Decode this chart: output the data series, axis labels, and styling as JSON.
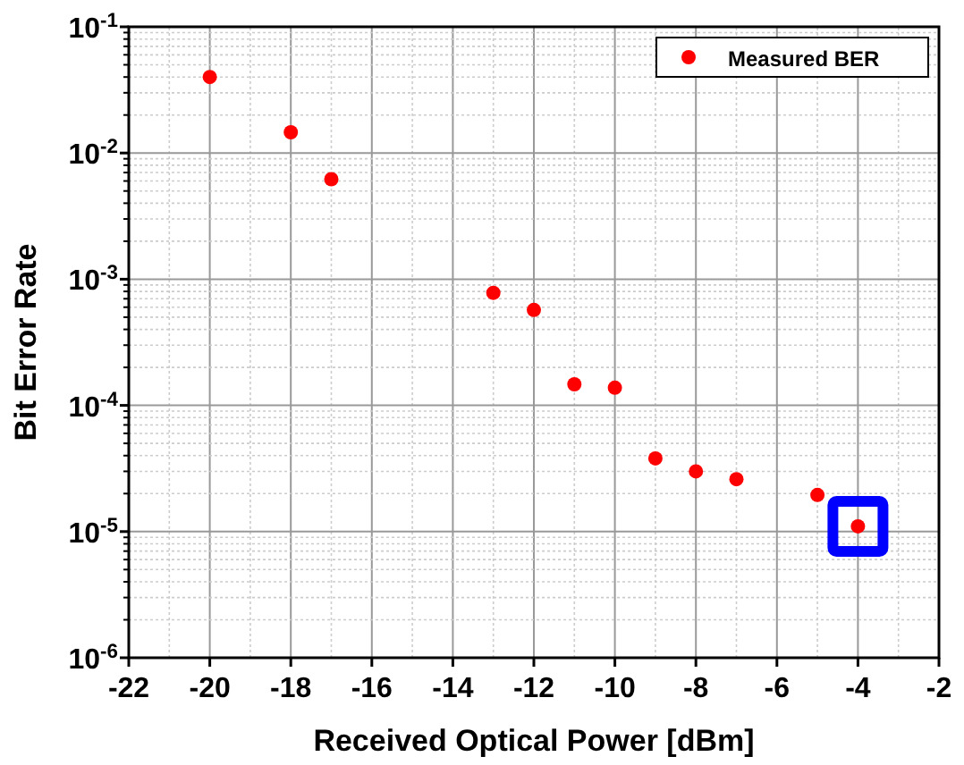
{
  "chart_data": {
    "type": "scatter",
    "xlabel": "Received Optical Power [dBm]",
    "ylabel": "Bit Error Rate",
    "log": "y",
    "grid": true,
    "legend": "top right",
    "marker": "circle",
    "x": [
      -20,
      -18,
      -17,
      -13,
      -12,
      -11,
      -10,
      -9,
      -8,
      -7,
      -5,
      -4
    ],
    "series": [
      {
        "name": "Measured BER",
        "color": "#ff0000",
        "values": [
          0.04,
          0.0146,
          0.0062,
          0.00078,
          0.00057,
          0.000147,
          0.000138,
          3.8e-05,
          3e-05,
          2.6e-05,
          1.95e-05,
          1.1e-05
        ]
      }
    ],
    "xlim": [
      -22,
      -2
    ],
    "xticks": [
      -22,
      -20,
      -18,
      -16,
      -14,
      -12,
      -10,
      -8,
      -6,
      -4,
      -2
    ],
    "ylim": [
      1e-06,
      0.1
    ],
    "yticks": [
      {
        "value": 0.1,
        "label": "10$^{-1}$"
      },
      {
        "value": 0.01,
        "label": "10$^{-2}$"
      },
      {
        "value": 0.001,
        "label": "10$^{-3}$"
      },
      {
        "value": 0.0001,
        "label": "10$^{-4}$"
      },
      {
        "value": 1e-05,
        "label": "10$^{-5}$"
      },
      {
        "value": 1e-06,
        "label": "10$^{-6}$"
      }
    ]
  }
}
